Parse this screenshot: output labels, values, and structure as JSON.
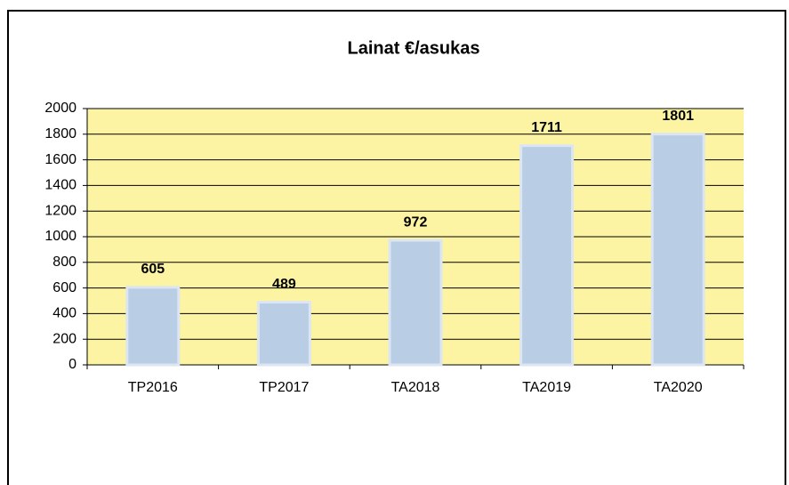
{
  "chart_data": {
    "type": "bar",
    "title": "Lainat €/asukas",
    "categories": [
      "TP2016",
      "TP2017",
      "TA2018",
      "TA2019",
      "TA2020"
    ],
    "values": [
      605,
      489,
      972,
      1711,
      1801
    ],
    "color": "#b9cde5",
    "ylim": [
      0,
      2000
    ],
    "yticks": [
      0,
      200,
      400,
      600,
      800,
      1000,
      1200,
      1400,
      1600,
      1800,
      2000
    ],
    "grid": true
  }
}
